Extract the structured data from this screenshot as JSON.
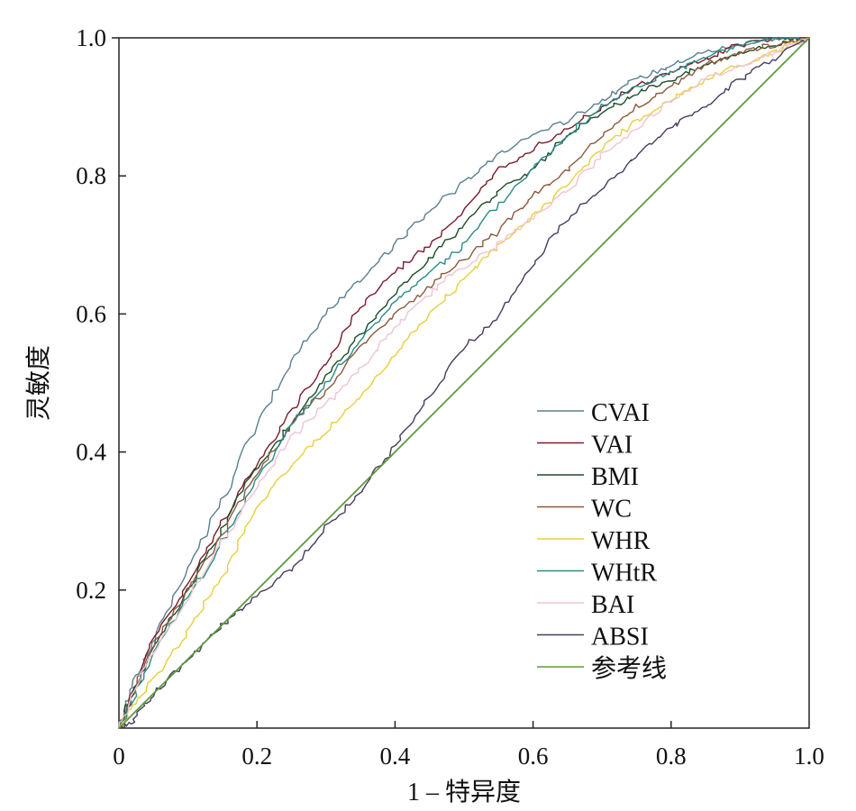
{
  "chart_data": {
    "type": "line",
    "xlabel": "1 – 特异度",
    "ylabel": "灵敏度",
    "xlim": [
      0,
      1
    ],
    "ylim": [
      0,
      1
    ],
    "grid": false,
    "legend_position": "lower-right",
    "x_ticks": [
      {
        "value": 0,
        "label": "0"
      },
      {
        "value": 0.2,
        "label": "0.2"
      },
      {
        "value": 0.4,
        "label": "0.4"
      },
      {
        "value": 0.6,
        "label": "0.6"
      },
      {
        "value": 0.8,
        "label": "0.8"
      },
      {
        "value": 1.0,
        "label": "1.0"
      }
    ],
    "y_ticks": [
      {
        "value": 0.2,
        "label": "0.2"
      },
      {
        "value": 0.4,
        "label": "0.4"
      },
      {
        "value": 0.6,
        "label": "0.6"
      },
      {
        "value": 0.8,
        "label": "0.8"
      },
      {
        "value": 1.0,
        "label": "1.0"
      }
    ],
    "series": [
      {
        "name": "CVAI",
        "color": "#5a7f8e",
        "points": [
          [
            0,
            0
          ],
          [
            0.02,
            0.06
          ],
          [
            0.05,
            0.13
          ],
          [
            0.1,
            0.23
          ],
          [
            0.15,
            0.33
          ],
          [
            0.2,
            0.44
          ],
          [
            0.25,
            0.53
          ],
          [
            0.3,
            0.6
          ],
          [
            0.35,
            0.65
          ],
          [
            0.4,
            0.7
          ],
          [
            0.45,
            0.75
          ],
          [
            0.5,
            0.79
          ],
          [
            0.55,
            0.83
          ],
          [
            0.6,
            0.86
          ],
          [
            0.65,
            0.88
          ],
          [
            0.7,
            0.91
          ],
          [
            0.75,
            0.94
          ],
          [
            0.8,
            0.96
          ],
          [
            0.85,
            0.98
          ],
          [
            0.9,
            0.99
          ],
          [
            0.95,
            1.0
          ],
          [
            1,
            1
          ]
        ]
      },
      {
        "name": "VAI",
        "color": "#7a1c2c",
        "points": [
          [
            0,
            0
          ],
          [
            0.02,
            0.05
          ],
          [
            0.05,
            0.13
          ],
          [
            0.1,
            0.21
          ],
          [
            0.15,
            0.3
          ],
          [
            0.2,
            0.38
          ],
          [
            0.25,
            0.46
          ],
          [
            0.3,
            0.53
          ],
          [
            0.35,
            0.61
          ],
          [
            0.4,
            0.66
          ],
          [
            0.45,
            0.7
          ],
          [
            0.5,
            0.75
          ],
          [
            0.55,
            0.81
          ],
          [
            0.6,
            0.84
          ],
          [
            0.65,
            0.87
          ],
          [
            0.7,
            0.9
          ],
          [
            0.75,
            0.93
          ],
          [
            0.8,
            0.95
          ],
          [
            0.85,
            0.97
          ],
          [
            0.9,
            0.99
          ],
          [
            0.95,
            1.0
          ],
          [
            1,
            1
          ]
        ]
      },
      {
        "name": "BMI",
        "color": "#1d4d26",
        "points": [
          [
            0,
            0
          ],
          [
            0.02,
            0.05
          ],
          [
            0.05,
            0.12
          ],
          [
            0.1,
            0.2
          ],
          [
            0.15,
            0.29
          ],
          [
            0.2,
            0.38
          ],
          [
            0.25,
            0.44
          ],
          [
            0.3,
            0.51
          ],
          [
            0.35,
            0.57
          ],
          [
            0.4,
            0.63
          ],
          [
            0.45,
            0.68
          ],
          [
            0.5,
            0.73
          ],
          [
            0.55,
            0.78
          ],
          [
            0.6,
            0.81
          ],
          [
            0.65,
            0.86
          ],
          [
            0.7,
            0.89
          ],
          [
            0.75,
            0.92
          ],
          [
            0.8,
            0.94
          ],
          [
            0.85,
            0.96
          ],
          [
            0.9,
            0.98
          ],
          [
            0.95,
            0.99
          ],
          [
            1,
            1
          ]
        ]
      },
      {
        "name": "WC",
        "color": "#8b5a3c",
        "points": [
          [
            0,
            0
          ],
          [
            0.02,
            0.05
          ],
          [
            0.05,
            0.12
          ],
          [
            0.1,
            0.2
          ],
          [
            0.15,
            0.28
          ],
          [
            0.2,
            0.37
          ],
          [
            0.25,
            0.44
          ],
          [
            0.3,
            0.49
          ],
          [
            0.35,
            0.55
          ],
          [
            0.4,
            0.6
          ],
          [
            0.45,
            0.64
          ],
          [
            0.5,
            0.68
          ],
          [
            0.55,
            0.72
          ],
          [
            0.6,
            0.77
          ],
          [
            0.65,
            0.81
          ],
          [
            0.7,
            0.86
          ],
          [
            0.75,
            0.9
          ],
          [
            0.8,
            0.93
          ],
          [
            0.85,
            0.96
          ],
          [
            0.9,
            0.98
          ],
          [
            0.95,
            0.99
          ],
          [
            1,
            1
          ]
        ]
      },
      {
        "name": "WHR",
        "color": "#e8cf3a",
        "points": [
          [
            0,
            0
          ],
          [
            0.02,
            0.03
          ],
          [
            0.05,
            0.07
          ],
          [
            0.1,
            0.14
          ],
          [
            0.15,
            0.22
          ],
          [
            0.2,
            0.32
          ],
          [
            0.25,
            0.38
          ],
          [
            0.3,
            0.43
          ],
          [
            0.35,
            0.48
          ],
          [
            0.4,
            0.54
          ],
          [
            0.45,
            0.6
          ],
          [
            0.5,
            0.65
          ],
          [
            0.55,
            0.7
          ],
          [
            0.6,
            0.74
          ],
          [
            0.65,
            0.79
          ],
          [
            0.7,
            0.84
          ],
          [
            0.75,
            0.88
          ],
          [
            0.8,
            0.91
          ],
          [
            0.85,
            0.94
          ],
          [
            0.9,
            0.96
          ],
          [
            0.95,
            0.98
          ],
          [
            1,
            1
          ]
        ]
      },
      {
        "name": "WHtR",
        "color": "#2b8a86",
        "points": [
          [
            0,
            0
          ],
          [
            0.02,
            0.04
          ],
          [
            0.05,
            0.11
          ],
          [
            0.1,
            0.19
          ],
          [
            0.15,
            0.27
          ],
          [
            0.2,
            0.36
          ],
          [
            0.25,
            0.44
          ],
          [
            0.3,
            0.5
          ],
          [
            0.35,
            0.56
          ],
          [
            0.4,
            0.62
          ],
          [
            0.45,
            0.66
          ],
          [
            0.5,
            0.7
          ],
          [
            0.55,
            0.76
          ],
          [
            0.6,
            0.81
          ],
          [
            0.65,
            0.86
          ],
          [
            0.7,
            0.9
          ],
          [
            0.75,
            0.93
          ],
          [
            0.8,
            0.95
          ],
          [
            0.85,
            0.97
          ],
          [
            0.9,
            0.99
          ],
          [
            0.95,
            1.0
          ],
          [
            1,
            1
          ]
        ]
      },
      {
        "name": "BAI",
        "color": "#efc4cf",
        "points": [
          [
            0,
            0
          ],
          [
            0.02,
            0.05
          ],
          [
            0.05,
            0.11
          ],
          [
            0.1,
            0.19
          ],
          [
            0.15,
            0.27
          ],
          [
            0.2,
            0.35
          ],
          [
            0.25,
            0.42
          ],
          [
            0.3,
            0.47
          ],
          [
            0.35,
            0.52
          ],
          [
            0.4,
            0.58
          ],
          [
            0.45,
            0.63
          ],
          [
            0.5,
            0.67
          ],
          [
            0.55,
            0.7
          ],
          [
            0.6,
            0.74
          ],
          [
            0.65,
            0.78
          ],
          [
            0.7,
            0.83
          ],
          [
            0.75,
            0.87
          ],
          [
            0.8,
            0.91
          ],
          [
            0.85,
            0.94
          ],
          [
            0.9,
            0.96
          ],
          [
            0.95,
            0.98
          ],
          [
            1,
            1
          ]
        ]
      },
      {
        "name": "ABSI",
        "color": "#4a3a5e",
        "points": [
          [
            0,
            0
          ],
          [
            0.02,
            0.01
          ],
          [
            0.05,
            0.05
          ],
          [
            0.1,
            0.1
          ],
          [
            0.15,
            0.15
          ],
          [
            0.2,
            0.19
          ],
          [
            0.25,
            0.23
          ],
          [
            0.3,
            0.29
          ],
          [
            0.35,
            0.34
          ],
          [
            0.4,
            0.41
          ],
          [
            0.45,
            0.48
          ],
          [
            0.5,
            0.55
          ],
          [
            0.55,
            0.6
          ],
          [
            0.6,
            0.67
          ],
          [
            0.65,
            0.74
          ],
          [
            0.7,
            0.78
          ],
          [
            0.75,
            0.83
          ],
          [
            0.8,
            0.87
          ],
          [
            0.85,
            0.9
          ],
          [
            0.9,
            0.94
          ],
          [
            0.95,
            0.97
          ],
          [
            1,
            1
          ]
        ]
      },
      {
        "name": "参考线",
        "color": "#5d9a3c",
        "points": [
          [
            0,
            0
          ],
          [
            1,
            1
          ]
        ]
      }
    ]
  }
}
